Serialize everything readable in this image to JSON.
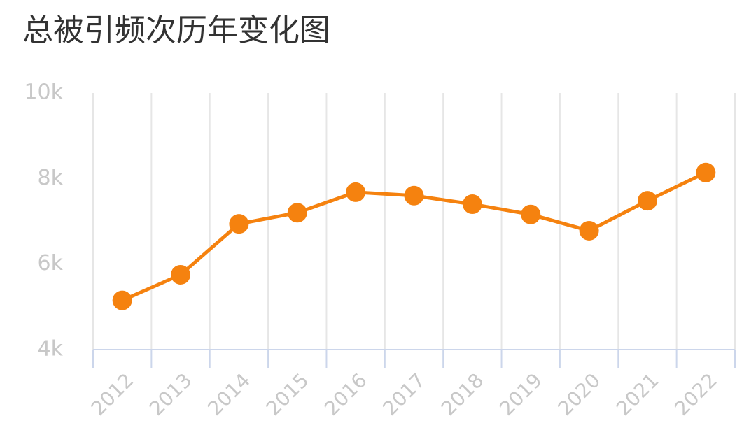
{
  "chart_data": {
    "type": "line",
    "title": "总被引频次历年变化图",
    "categories": [
      "2012",
      "2013",
      "2014",
      "2015",
      "2016",
      "2017",
      "2018",
      "2019",
      "2020",
      "2021",
      "2022"
    ],
    "series": [
      {
        "name": "总被引频次",
        "color": "#f5820f",
        "values": [
          5150,
          5750,
          6940,
          7200,
          7680,
          7600,
          7400,
          7160,
          6780,
          7480,
          8140
        ]
      }
    ],
    "ylim": [
      4000,
      10000
    ],
    "yticks": [
      {
        "value": 4000,
        "label": "4k"
      },
      {
        "value": 6000,
        "label": "6k"
      },
      {
        "value": 8000,
        "label": "8k"
      },
      {
        "value": 10000,
        "label": "10k"
      }
    ],
    "category_grid": true
  }
}
